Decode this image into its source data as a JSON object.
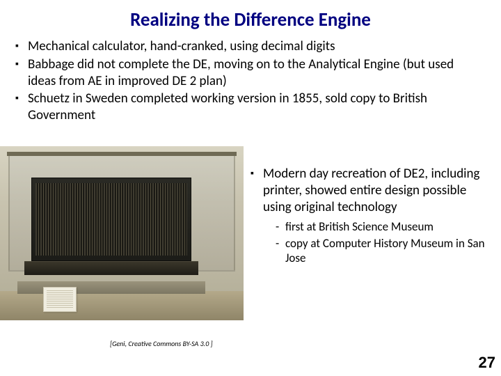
{
  "title": "Realizing the Difference Engine",
  "top_bullets": [
    "Mechanical calculator,  hand-cranked, using decimal digits",
    "Babbage did not complete the DE, moving on to the Analytical Engine (but used ideas from AE in improved DE 2 plan)",
    "Schuetz in Sweden completed working version in 1855, sold copy to British Government"
  ],
  "right_bullet": "Modern day recreation of DE2, including printer, showed entire design possible using original technology",
  "sub_bullets": [
    "first at British Science Museum",
    "copy at Computer History Museum in San Jose"
  ],
  "image_credit": "[Geni, Creative Commons BY-SA 3.0 ]",
  "page_number": "27",
  "colors": {
    "title": "#000080",
    "text": "#000000",
    "background": "#ffffff"
  }
}
